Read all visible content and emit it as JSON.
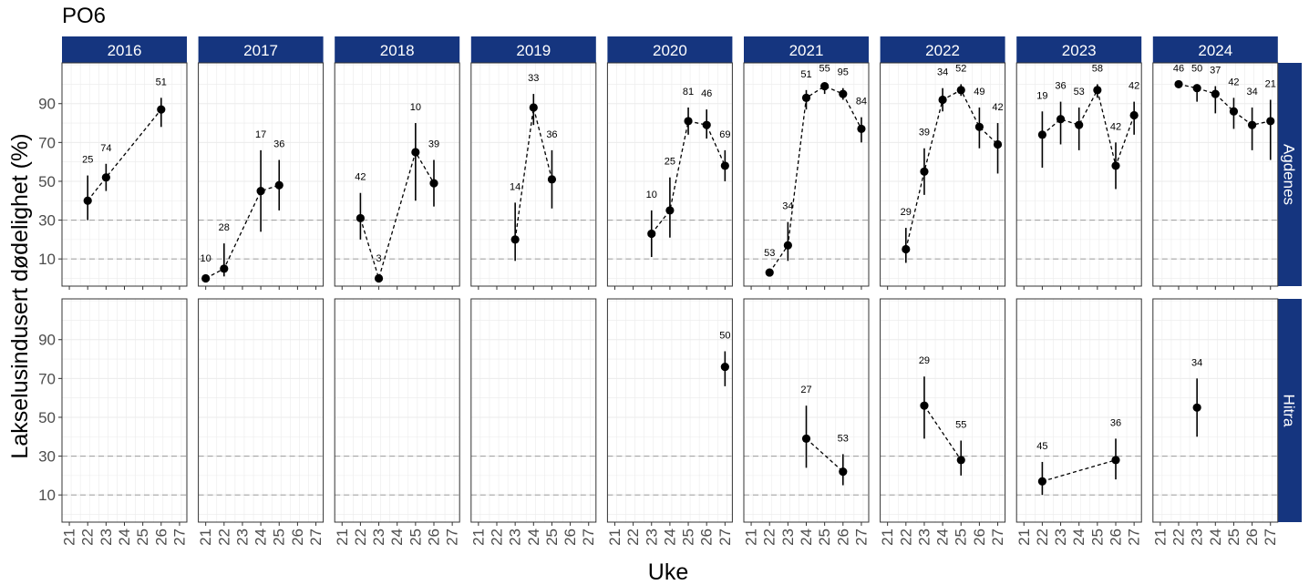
{
  "title": "PO6",
  "xlabel": "Uke",
  "ylabel": "Lakselusindusert dødelighet (%)",
  "colors": {
    "strip": "#15357f",
    "strip_text": "#ffffff",
    "point": "#000000",
    "ref_line": "#a6a6a6",
    "grid": "#ebebeb",
    "border": "#333333"
  },
  "chart_data": {
    "type": "scatter",
    "facet_cols": [
      "2016",
      "2017",
      "2018",
      "2019",
      "2020",
      "2021",
      "2022",
      "2023",
      "2024"
    ],
    "facet_rows": [
      "Agdenes",
      "Hitra"
    ],
    "xlim": [
      20.6,
      27.4
    ],
    "ylim": [
      -4,
      111
    ],
    "x_ticks": [
      21,
      22,
      23,
      24,
      25,
      26,
      27
    ],
    "y_ticks": [
      10,
      30,
      50,
      70,
      90
    ],
    "reference_lines": [
      10,
      30
    ],
    "connect_points": "dashed",
    "grid": true,
    "panels": [
      {
        "row": "Agdenes",
        "col": "2016",
        "points": [
          {
            "x": 22,
            "y": 40,
            "lo": 30,
            "hi": 53,
            "n": "25"
          },
          {
            "x": 23,
            "y": 52,
            "lo": 45,
            "hi": 59,
            "n": "74"
          },
          {
            "x": 26,
            "y": 87,
            "lo": 78,
            "hi": 93,
            "n": "51"
          }
        ]
      },
      {
        "row": "Agdenes",
        "col": "2017",
        "points": [
          {
            "x": 21,
            "y": 0,
            "lo": 0,
            "hi": 2,
            "n": "10"
          },
          {
            "x": 22,
            "y": 5,
            "lo": 1,
            "hi": 18,
            "n": "28"
          },
          {
            "x": 24,
            "y": 45,
            "lo": 24,
            "hi": 66,
            "n": "17"
          },
          {
            "x": 25,
            "y": 48,
            "lo": 35,
            "hi": 61,
            "n": "36"
          }
        ]
      },
      {
        "row": "Agdenes",
        "col": "2018",
        "points": [
          {
            "x": 22,
            "y": 31,
            "lo": 20,
            "hi": 44,
            "n": "42"
          },
          {
            "x": 23,
            "y": 0,
            "lo": 0,
            "hi": 2,
            "n": "3"
          },
          {
            "x": 25,
            "y": 65,
            "lo": 40,
            "hi": 80,
            "n": "10"
          },
          {
            "x": 26,
            "y": 49,
            "lo": 37,
            "hi": 61,
            "n": "39"
          }
        ]
      },
      {
        "row": "Agdenes",
        "col": "2019",
        "points": [
          {
            "x": 23,
            "y": 20,
            "lo": 9,
            "hi": 39,
            "n": "14"
          },
          {
            "x": 24,
            "y": 88,
            "lo": 79,
            "hi": 95,
            "n": "33"
          },
          {
            "x": 25,
            "y": 51,
            "lo": 36,
            "hi": 66,
            "n": "36"
          }
        ]
      },
      {
        "row": "Agdenes",
        "col": "2020",
        "points": [
          {
            "x": 23,
            "y": 23,
            "lo": 11,
            "hi": 35,
            "n": "10"
          },
          {
            "x": 24,
            "y": 35,
            "lo": 21,
            "hi": 52,
            "n": "25"
          },
          {
            "x": 25,
            "y": 81,
            "lo": 74,
            "hi": 88,
            "n": "81"
          },
          {
            "x": 26,
            "y": 79,
            "lo": 72,
            "hi": 87,
            "n": "46"
          },
          {
            "x": 27,
            "y": 58,
            "lo": 50,
            "hi": 66,
            "n": "69"
          }
        ]
      },
      {
        "row": "Agdenes",
        "col": "2021",
        "points": [
          {
            "x": 22,
            "y": 3,
            "lo": 2,
            "hi": 5,
            "n": "53"
          },
          {
            "x": 23,
            "y": 17,
            "lo": 9,
            "hi": 29,
            "n": "34"
          },
          {
            "x": 24,
            "y": 93,
            "lo": 87,
            "hi": 97,
            "n": "51"
          },
          {
            "x": 25,
            "y": 99,
            "lo": 95,
            "hi": 100,
            "n": "55"
          },
          {
            "x": 26,
            "y": 95,
            "lo": 92,
            "hi": 98,
            "n": "95"
          },
          {
            "x": 27,
            "y": 77,
            "lo": 70,
            "hi": 83,
            "n": "84"
          }
        ]
      },
      {
        "row": "Agdenes",
        "col": "2022",
        "points": [
          {
            "x": 22,
            "y": 15,
            "lo": 8,
            "hi": 26,
            "n": "29"
          },
          {
            "x": 23,
            "y": 55,
            "lo": 43,
            "hi": 67,
            "n": "39"
          },
          {
            "x": 24,
            "y": 92,
            "lo": 86,
            "hi": 98,
            "n": "34"
          },
          {
            "x": 25,
            "y": 97,
            "lo": 94,
            "hi": 100,
            "n": "52"
          },
          {
            "x": 26,
            "y": 78,
            "lo": 67,
            "hi": 88,
            "n": "49"
          },
          {
            "x": 27,
            "y": 69,
            "lo": 54,
            "hi": 80,
            "n": "42"
          }
        ]
      },
      {
        "row": "Agdenes",
        "col": "2023",
        "points": [
          {
            "x": 22,
            "y": 74,
            "lo": 57,
            "hi": 86,
            "n": "19"
          },
          {
            "x": 23,
            "y": 82,
            "lo": 69,
            "hi": 91,
            "n": "36"
          },
          {
            "x": 24,
            "y": 79,
            "lo": 66,
            "hi": 88,
            "n": "53"
          },
          {
            "x": 25,
            "y": 97,
            "lo": 93,
            "hi": 100,
            "n": "58"
          },
          {
            "x": 26,
            "y": 58,
            "lo": 46,
            "hi": 70,
            "n": "42"
          },
          {
            "x": 27,
            "y": 84,
            "lo": 74,
            "hi": 91,
            "n": "42"
          }
        ]
      },
      {
        "row": "Agdenes",
        "col": "2024",
        "points": [
          {
            "x": 22,
            "y": 100,
            "lo": 98,
            "hi": 100,
            "n": "46"
          },
          {
            "x": 23,
            "y": 98,
            "lo": 91,
            "hi": 100,
            "n": "50"
          },
          {
            "x": 24,
            "y": 95,
            "lo": 85,
            "hi": 99,
            "n": "37"
          },
          {
            "x": 25,
            "y": 86,
            "lo": 77,
            "hi": 93,
            "n": "42"
          },
          {
            "x": 26,
            "y": 79,
            "lo": 66,
            "hi": 88,
            "n": "34"
          },
          {
            "x": 27,
            "y": 81,
            "lo": 61,
            "hi": 92,
            "n": "21"
          }
        ]
      },
      {
        "row": "Hitra",
        "col": "2016",
        "points": []
      },
      {
        "row": "Hitra",
        "col": "2017",
        "points": []
      },
      {
        "row": "Hitra",
        "col": "2018",
        "points": []
      },
      {
        "row": "Hitra",
        "col": "2019",
        "points": []
      },
      {
        "row": "Hitra",
        "col": "2020",
        "points": [
          {
            "x": 27,
            "y": 76,
            "lo": 66,
            "hi": 84,
            "n": "50"
          }
        ]
      },
      {
        "row": "Hitra",
        "col": "2021",
        "points": [
          {
            "x": 24,
            "y": 39,
            "lo": 24,
            "hi": 56,
            "n": "27"
          },
          {
            "x": 26,
            "y": 22,
            "lo": 15,
            "hi": 31,
            "n": "53"
          }
        ]
      },
      {
        "row": "Hitra",
        "col": "2022",
        "points": [
          {
            "x": 23,
            "y": 56,
            "lo": 39,
            "hi": 71,
            "n": "29"
          },
          {
            "x": 25,
            "y": 28,
            "lo": 20,
            "hi": 38,
            "n": "55"
          }
        ]
      },
      {
        "row": "Hitra",
        "col": "2023",
        "points": [
          {
            "x": 22,
            "y": 17,
            "lo": 10,
            "hi": 27,
            "n": "45"
          },
          {
            "x": 26,
            "y": 28,
            "lo": 18,
            "hi": 39,
            "n": "36"
          }
        ]
      },
      {
        "row": "Hitra",
        "col": "2024",
        "points": [
          {
            "x": 23,
            "y": 55,
            "lo": 40,
            "hi": 70,
            "n": "34"
          }
        ]
      }
    ]
  }
}
